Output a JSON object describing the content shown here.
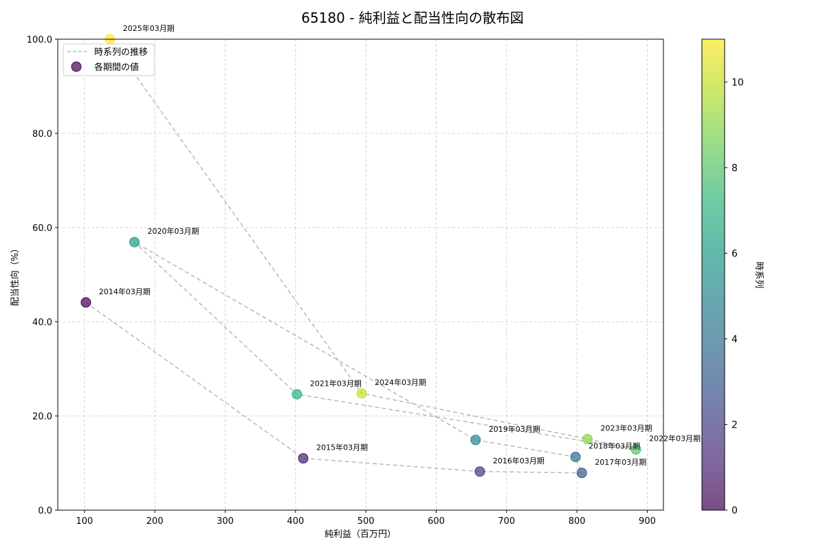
{
  "chart_data": {
    "type": "scatter",
    "title": "65180 - 純利益と配当性向の散布図",
    "xlabel": "純利益（百万円）",
    "ylabel": "配当性向（%）",
    "xlim": [
      62,
      923
    ],
    "ylim": [
      0,
      100
    ],
    "x_ticks": [
      100,
      200,
      300,
      400,
      500,
      600,
      700,
      800,
      900
    ],
    "y_ticks": [
      0,
      20,
      40,
      60,
      80,
      100
    ],
    "y_tick_labels": [
      "0.0",
      "20.0",
      "40.0",
      "60.0",
      "80.0",
      "100.0"
    ],
    "grid": true,
    "legend": {
      "position": "top-left",
      "entries": [
        {
          "label": "時系列の推移",
          "kind": "dashed-line"
        },
        {
          "label": "各期間の値",
          "kind": "marker"
        }
      ]
    },
    "colorbar": {
      "label": "時系列",
      "min": 0,
      "max": 11,
      "ticks": [
        0,
        2,
        4,
        6,
        8,
        10
      ],
      "colormap": [
        "#440154",
        "#482878",
        "#3e4989",
        "#31688e",
        "#26828e",
        "#1f9e89",
        "#35b779",
        "#6ece58",
        "#b5de2b",
        "#fde725"
      ]
    },
    "points": [
      {
        "label": "2014年03月期",
        "x": 102,
        "y": 44.1,
        "t": 0
      },
      {
        "label": "2015年03月期",
        "x": 411,
        "y": 11.0,
        "t": 1
      },
      {
        "label": "2016年03月期",
        "x": 662,
        "y": 8.2,
        "t": 2
      },
      {
        "label": "2017年03月期",
        "x": 807,
        "y": 7.9,
        "t": 3
      },
      {
        "label": "2018年03月期",
        "x": 798,
        "y": 11.3,
        "t": 4
      },
      {
        "label": "2019年03月期",
        "x": 656,
        "y": 14.9,
        "t": 5
      },
      {
        "label": "2020年03月期",
        "x": 171,
        "y": 56.9,
        "t": 6
      },
      {
        "label": "2021年03月期",
        "x": 402,
        "y": 24.6,
        "t": 7
      },
      {
        "label": "2022年03月期",
        "x": 884,
        "y": 12.9,
        "t": 8
      },
      {
        "label": "2023年03月期",
        "x": 815,
        "y": 15.1,
        "t": 9
      },
      {
        "label": "2024年03月期",
        "x": 494,
        "y": 24.8,
        "t": 10
      },
      {
        "label": "2025年03月期",
        "x": 136,
        "y": 100.0,
        "t": 11
      }
    ]
  }
}
